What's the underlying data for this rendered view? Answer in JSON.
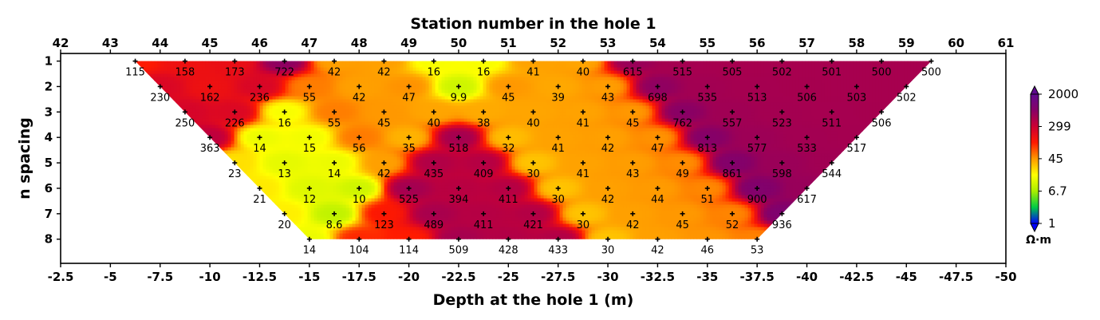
{
  "chart_data": {
    "type": "heatmap",
    "title": "Station number in the hole 1",
    "xlabel": "Depth at the hole 1 (m)",
    "ylabel": "n spacing",
    "top_axis_label": "Station number in the hole 1",
    "xlim": [
      -2.5,
      -50
    ],
    "ylim": [
      8.95,
      0.7
    ],
    "x_ticks": [
      -2.5,
      -5,
      -7.5,
      -10,
      -12.5,
      -15,
      -17.5,
      -20,
      -22.5,
      -25,
      -27.5,
      -30,
      -32.5,
      -35,
      -37.5,
      -40,
      -42.5,
      -45,
      -47.5,
      -50
    ],
    "x_tick_labels": [
      "-2.5",
      "-5",
      "-7.5",
      "-10",
      "-12.5",
      "-15",
      "-17.5",
      "-20",
      "-22.5",
      "-25",
      "-27.5",
      "-30",
      "-32.5",
      "-35",
      "-37.5",
      "-40",
      "-42.5",
      "-45",
      "-47.5",
      "-50"
    ],
    "top_ticks": [
      "42",
      "43",
      "44",
      "45",
      "46",
      "47",
      "48",
      "49",
      "50",
      "51",
      "52",
      "53",
      "54",
      "55",
      "56",
      "57",
      "58",
      "59",
      "60",
      "61"
    ],
    "y_ticks": [
      "1",
      "2",
      "3",
      "4",
      "5",
      "6",
      "7",
      "8"
    ],
    "rows": [
      {
        "n": 1,
        "x_start": -6.25,
        "values": [
          "115",
          "158",
          "173",
          "722",
          "42",
          "42",
          "16",
          "16",
          "41",
          "40",
          "615",
          "515",
          "505",
          "502",
          "501",
          "500",
          "500"
        ]
      },
      {
        "n": 2,
        "x_start": -7.5,
        "values": [
          "230",
          "162",
          "236",
          "55",
          "42",
          "47",
          "9.9",
          "45",
          "39",
          "43",
          "698",
          "535",
          "513",
          "506",
          "503",
          "502"
        ]
      },
      {
        "n": 3,
        "x_start": -8.75,
        "values": [
          "250",
          "226",
          "16",
          "55",
          "45",
          "40",
          "38",
          "40",
          "41",
          "45",
          "762",
          "557",
          "523",
          "511",
          "506"
        ]
      },
      {
        "n": 4,
        "x_start": -10,
        "values": [
          "363",
          "14",
          "15",
          "56",
          "35",
          "518",
          "32",
          "41",
          "42",
          "47",
          "813",
          "577",
          "533",
          "517"
        ]
      },
      {
        "n": 5,
        "x_start": -11.25,
        "values": [
          "23",
          "13",
          "14",
          "42",
          "435",
          "409",
          "30",
          "41",
          "43",
          "49",
          "861",
          "598",
          "544"
        ]
      },
      {
        "n": 6,
        "x_start": -12.5,
        "values": [
          "21",
          "12",
          "10",
          "525",
          "394",
          "411",
          "30",
          "42",
          "44",
          "51",
          "900",
          "617"
        ]
      },
      {
        "n": 7,
        "x_start": -13.75,
        "values": [
          "20",
          "8.6",
          "123",
          "489",
          "411",
          "421",
          "30",
          "42",
          "45",
          "52",
          "936"
        ]
      },
      {
        "n": 8,
        "x_start": -15,
        "values": [
          "14",
          "104",
          "114",
          "509",
          "428",
          "433",
          "30",
          "42",
          "46",
          "53"
        ]
      }
    ],
    "colorbar": {
      "scale": "log",
      "range": [
        1,
        2000
      ],
      "tick_values": [
        2000,
        299,
        45,
        6.7,
        1
      ],
      "tick_labels": [
        "2000",
        "299",
        "45",
        "6.7",
        "1"
      ],
      "unit": "Ω·m",
      "colors": [
        "#0000ff",
        "#00cc44",
        "#aaee00",
        "#ffff00",
        "#ff9900",
        "#ff1a00",
        "#cc0033",
        "#880066",
        "#5e0a8f"
      ]
    },
    "grid": false,
    "legend": "right"
  }
}
